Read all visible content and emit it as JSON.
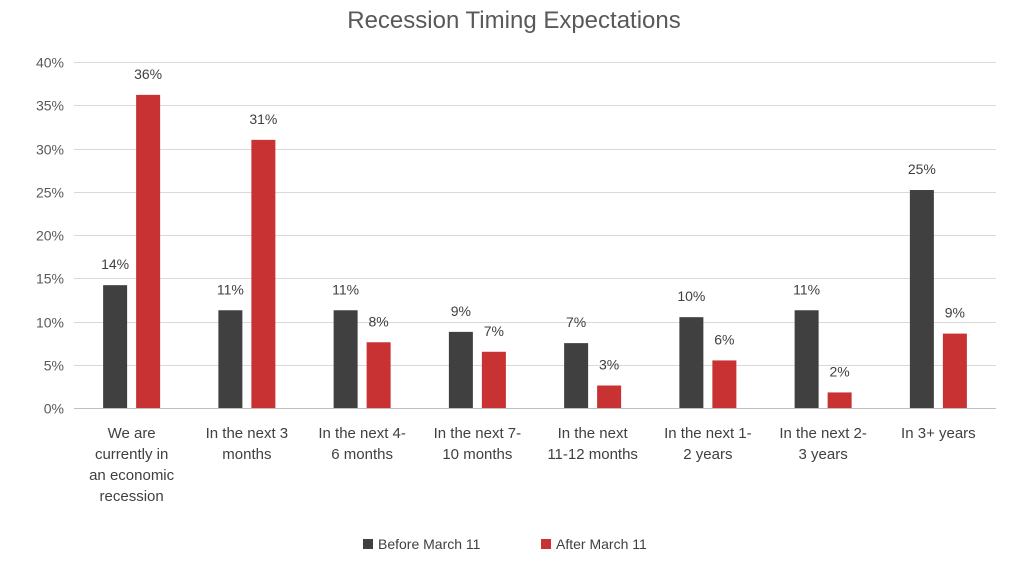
{
  "chart_data": {
    "type": "bar",
    "title": "Recession Timing Expectations",
    "xlabel": "",
    "ylabel": "",
    "ylim": [
      0,
      40
    ],
    "yticks": [
      0,
      5,
      10,
      15,
      20,
      25,
      30,
      35,
      40
    ],
    "ytick_suffix": "%",
    "grid": true,
    "legend_position": "bottom",
    "categories": [
      [
        "We are",
        "currently in",
        "an economic",
        "recession"
      ],
      [
        "In the next 3",
        "months"
      ],
      [
        "In the next 4-",
        "6 months"
      ],
      [
        "In the next 7-",
        "10 months"
      ],
      [
        "In the next",
        "11-12 months"
      ],
      [
        "In the next 1-",
        "2 years"
      ],
      [
        "In the next 2-",
        "3 years"
      ],
      [
        "In 3+ years"
      ]
    ],
    "series": [
      {
        "name": "Before March 11",
        "color": "#404040",
        "values": [
          14.2,
          11.3,
          11.3,
          8.8,
          7.5,
          10.5,
          11.3,
          25.2
        ],
        "labels": [
          "14%",
          "11%",
          "11%",
          "9%",
          "7%",
          "10%",
          "11%",
          "25%"
        ]
      },
      {
        "name": "After March 11",
        "color": "#c83232",
        "values": [
          36.2,
          31.0,
          7.6,
          6.5,
          2.6,
          5.5,
          1.8,
          8.6
        ],
        "labels": [
          "36%",
          "31%",
          "8%",
          "7%",
          "3%",
          "6%",
          "2%",
          "9%"
        ]
      }
    ]
  }
}
